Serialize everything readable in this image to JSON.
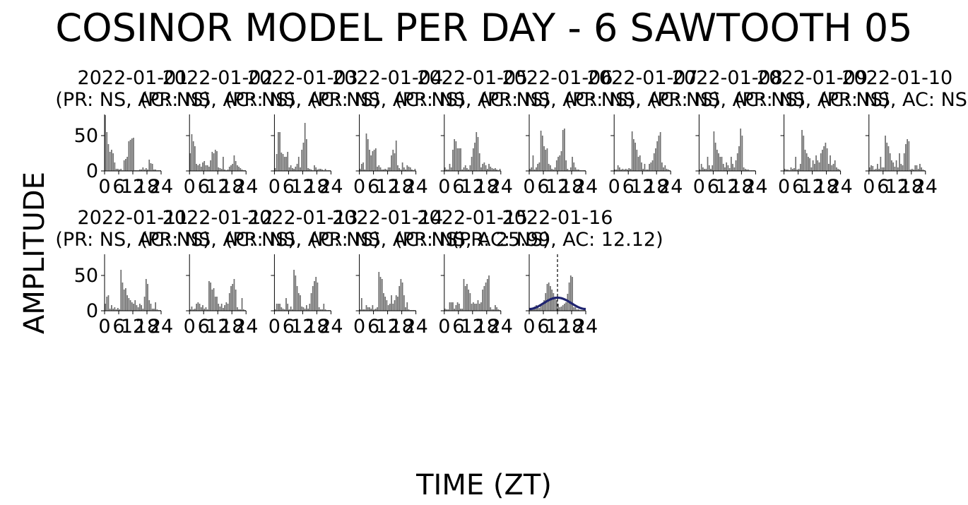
{
  "figure": {
    "title": "COSINOR MODEL PER DAY - 6 SAWTOOTH 05",
    "xlabel": "TIME (ZT)",
    "ylabel": "AMPLITUDE"
  },
  "colors": {
    "bar": "#6e6e6e",
    "fit": "#1f2470",
    "axis": "#000000"
  },
  "chart_data": {
    "type": "bar",
    "grid": false,
    "legend": "none",
    "xlim": [
      0,
      24
    ],
    "ylim": [
      0,
      80
    ],
    "xticks": [
      0,
      6,
      12,
      18,
      24
    ],
    "yticks": [
      0,
      50
    ],
    "xtick_labels": [
      "0",
      "6",
      "12",
      "18",
      "24"
    ],
    "ytick_labels": [
      "0",
      "50"
    ],
    "panels": [
      {
        "date": "2022-01-01",
        "stats": "(PR: NS, AC: NS)",
        "values": [
          79,
          55,
          38,
          27,
          30,
          25,
          12,
          3,
          3,
          2,
          3,
          1,
          15,
          17,
          20,
          42,
          44,
          46,
          47,
          1,
          1,
          1,
          2,
          2,
          5,
          2,
          4,
          2,
          16,
          11,
          10,
          2,
          2,
          1,
          1,
          1
        ]
      },
      {
        "date": "2022-01-02",
        "stats": "(PR: NS, AC: NS)",
        "values": [
          25,
          52,
          42,
          35,
          10,
          8,
          10,
          6,
          12,
          14,
          8,
          8,
          6,
          15,
          27,
          25,
          30,
          28,
          5,
          4,
          3,
          20,
          2,
          1,
          2,
          6,
          8,
          10,
          22,
          14,
          8,
          6,
          4,
          2,
          1,
          1
        ]
      },
      {
        "date": "2022-01-03",
        "stats": "(PR: NS, AC: NS)",
        "values": [
          4,
          24,
          55,
          55,
          26,
          24,
          20,
          20,
          27,
          5,
          8,
          4,
          3,
          6,
          10,
          20,
          5,
          30,
          40,
          68,
          45,
          4,
          3,
          2,
          1,
          8,
          5,
          2,
          3,
          3,
          2,
          1,
          3,
          1,
          1,
          1
        ]
      },
      {
        "date": "2022-01-04",
        "stats": "(PR: NS, AC: NS)",
        "values": [
          3,
          10,
          12,
          2,
          53,
          45,
          30,
          22,
          28,
          30,
          32,
          6,
          8,
          5,
          2,
          2,
          3,
          2,
          5,
          5,
          22,
          30,
          25,
          43,
          8,
          4,
          2,
          12,
          5,
          2,
          8,
          6,
          5,
          2,
          1,
          3
        ]
      },
      {
        "date": "2022-01-05",
        "stats": "(PR: NS, AC: NS)",
        "values": [
          5,
          2,
          2,
          10,
          5,
          30,
          45,
          42,
          32,
          32,
          32,
          2,
          5,
          8,
          4,
          2,
          8,
          20,
          32,
          40,
          55,
          48,
          25,
          5,
          10,
          12,
          8,
          3,
          10,
          6,
          4,
          3,
          4,
          2,
          1,
          3
        ]
      },
      {
        "date": "2022-01-06",
        "stats": "(PR: NS, AC: NS)",
        "values": [
          3,
          5,
          22,
          2,
          5,
          10,
          12,
          57,
          50,
          35,
          30,
          32,
          10,
          8,
          3,
          2,
          5,
          15,
          20,
          22,
          28,
          58,
          60,
          15,
          3,
          1,
          5,
          20,
          12,
          5,
          2,
          2,
          1,
          1,
          1,
          1
        ]
      },
      {
        "date": "2022-01-07",
        "stats": "(PR: NS, AC: NS)",
        "values": [
          2,
          2,
          8,
          5,
          2,
          3,
          2,
          3,
          2,
          4,
          3,
          56,
          45,
          40,
          30,
          20,
          22,
          12,
          3,
          10,
          2,
          2,
          10,
          12,
          15,
          25,
          32,
          42,
          50,
          55,
          12,
          5,
          8,
          3,
          2,
          1
        ]
      },
      {
        "date": "2022-01-08",
        "stats": "(PR: NS, AC: NS)",
        "values": [
          2,
          10,
          5,
          3,
          3,
          20,
          8,
          3,
          8,
          56,
          40,
          30,
          25,
          20,
          20,
          10,
          5,
          12,
          8,
          4,
          20,
          10,
          5,
          15,
          25,
          35,
          60,
          50,
          5,
          3,
          2,
          2,
          1,
          1,
          1,
          1
        ]
      },
      {
        "date": "2022-01-09",
        "stats": "(PR: NS, AC: NS)",
        "values": [
          3,
          2,
          2,
          1,
          5,
          3,
          4,
          20,
          2,
          3,
          10,
          58,
          50,
          30,
          25,
          20,
          18,
          5,
          15,
          10,
          22,
          15,
          12,
          25,
          30,
          35,
          40,
          32,
          10,
          22,
          8,
          10,
          15,
          5,
          3,
          2
        ]
      },
      {
        "date": "2022-01-10",
        "stats": "(PR: NS, AC: NS)",
        "values": [
          5,
          8,
          7,
          2,
          3,
          10,
          3,
          20,
          5,
          5,
          50,
          40,
          35,
          25,
          15,
          12,
          6,
          15,
          5,
          25,
          10,
          8,
          25,
          38,
          45,
          42,
          2,
          3,
          2,
          8,
          8,
          3,
          10,
          5,
          2,
          1
        ]
      },
      {
        "date": "2022-01-11",
        "stats": "(PR: NS, AC: NS)",
        "values": [
          10,
          20,
          22,
          3,
          8,
          3,
          5,
          2,
          4,
          2,
          58,
          40,
          30,
          32,
          22,
          18,
          15,
          12,
          10,
          15,
          8,
          5,
          10,
          8,
          3,
          20,
          45,
          38,
          15,
          10,
          3,
          3,
          12,
          2,
          1,
          1
        ]
      },
      {
        "date": "2022-01-12",
        "stats": "(PR: NS, AC: NS)",
        "values": [
          2,
          6,
          2,
          3,
          10,
          12,
          10,
          5,
          8,
          3,
          5,
          2,
          42,
          40,
          30,
          32,
          20,
          20,
          10,
          6,
          10,
          4,
          8,
          12,
          10,
          25,
          35,
          38,
          45,
          30,
          5,
          2,
          2,
          18,
          2,
          1
        ]
      },
      {
        "date": "2022-01-13",
        "stats": "(PR: NS, AC: NS)",
        "values": [
          2,
          10,
          10,
          10,
          5,
          3,
          2,
          18,
          10,
          2,
          6,
          2,
          58,
          50,
          35,
          25,
          22,
          6,
          5,
          3,
          8,
          3,
          10,
          25,
          35,
          42,
          48,
          40,
          5,
          2,
          2,
          10,
          2,
          1,
          1,
          1
        ]
      },
      {
        "date": "2022-01-14",
        "stats": "(PR: NS, AC: NS)",
        "values": [
          2,
          18,
          2,
          2,
          8,
          5,
          5,
          3,
          8,
          2,
          3,
          5,
          55,
          48,
          45,
          25,
          20,
          15,
          8,
          10,
          22,
          10,
          15,
          22,
          20,
          35,
          45,
          40,
          22,
          5,
          12,
          2,
          1,
          1,
          1,
          1
        ]
      },
      {
        "date": "2022-01-15",
        "stats": "(PR: NS, AC: NS)",
        "values": [
          3,
          2,
          2,
          12,
          12,
          12,
          3,
          8,
          12,
          10,
          3,
          3,
          45,
          35,
          38,
          30,
          25,
          10,
          12,
          10,
          10,
          15,
          10,
          12,
          30,
          35,
          40,
          45,
          50,
          5,
          2,
          2,
          8,
          5,
          2,
          1
        ]
      },
      {
        "date": "2022-01-16",
        "stats": "(PR: 25.99, AC: 12.12)",
        "values": [
          2,
          4,
          2,
          6,
          8,
          5,
          4,
          10,
          8,
          15,
          25,
          38,
          40,
          35,
          30,
          25,
          20,
          15,
          10,
          5,
          6,
          8,
          10,
          12,
          24,
          40,
          50,
          48,
          5,
          5,
          2,
          2,
          1,
          1,
          1,
          1
        ],
        "fit": {
          "mesor": 10.5,
          "amplitude": 8.0,
          "acrophase": 12.0,
          "period": 24
        },
        "acrophase_marker": 12
      }
    ]
  }
}
